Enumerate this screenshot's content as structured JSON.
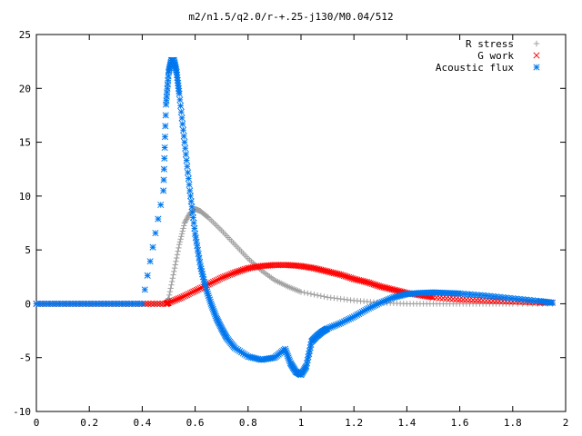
{
  "chart_data": {
    "type": "scatter",
    "title": "m2/n1.5/q2.0/r-+.25-j130/M0.04/512",
    "xlabel": "",
    "ylabel": "",
    "xlim": [
      0,
      2
    ],
    "ylim": [
      -10,
      25
    ],
    "x_ticks": [
      "0",
      "0.2",
      "0.4",
      "0.6",
      "0.8",
      "1",
      "1.2",
      "1.4",
      "1.6",
      "1.8",
      "2"
    ],
    "y_ticks": [
      "-10",
      "-5",
      "0",
      "5",
      "10",
      "15",
      "20",
      "25"
    ],
    "grid": false,
    "legend_position": "top-right",
    "series": [
      {
        "name": "R stress",
        "marker": "+",
        "color": "#a0a0a0",
        "x": [
          0.0,
          0.1,
          0.2,
          0.3,
          0.4,
          0.49,
          0.5,
          0.52,
          0.54,
          0.56,
          0.58,
          0.6,
          0.62,
          0.65,
          0.7,
          0.75,
          0.8,
          0.85,
          0.9,
          0.95,
          1.0,
          1.1,
          1.2,
          1.3,
          1.4,
          1.5,
          1.6,
          1.7,
          1.8,
          1.95
        ],
        "y": [
          0,
          0,
          0,
          0,
          0,
          0,
          0.5,
          3.0,
          5.5,
          7.5,
          8.4,
          8.8,
          8.6,
          8.0,
          6.8,
          5.5,
          4.2,
          3.1,
          2.2,
          1.6,
          1.1,
          0.6,
          0.3,
          0.1,
          0.0,
          0.0,
          0.0,
          0.0,
          0.0,
          0.0
        ]
      },
      {
        "name": "G work",
        "marker": "x",
        "color": "#ff0000",
        "x": [
          0.0,
          0.1,
          0.2,
          0.3,
          0.4,
          0.49,
          0.5,
          0.55,
          0.6,
          0.65,
          0.7,
          0.75,
          0.8,
          0.85,
          0.9,
          0.95,
          1.0,
          1.05,
          1.1,
          1.15,
          1.2,
          1.25,
          1.3,
          1.35,
          1.4,
          1.45,
          1.5,
          1.6,
          1.7,
          1.8,
          1.9,
          1.95
        ],
        "y": [
          0,
          0,
          0,
          0,
          0,
          0,
          0.1,
          0.6,
          1.2,
          1.8,
          2.4,
          2.9,
          3.3,
          3.5,
          3.6,
          3.6,
          3.5,
          3.3,
          3.0,
          2.7,
          2.3,
          2.0,
          1.6,
          1.3,
          1.0,
          0.8,
          0.6,
          0.4,
          0.3,
          0.2,
          0.1,
          0.1
        ]
      },
      {
        "name": "Acoustic flux",
        "marker": "*",
        "color": "#0077ee",
        "x": [
          0.0,
          0.1,
          0.2,
          0.3,
          0.4,
          0.48,
          0.49,
          0.5,
          0.51,
          0.52,
          0.53,
          0.54,
          0.56,
          0.58,
          0.6,
          0.62,
          0.64,
          0.66,
          0.68,
          0.7,
          0.72,
          0.75,
          0.8,
          0.85,
          0.9,
          0.94,
          0.96,
          0.98,
          1.0,
          1.02,
          1.04,
          1.06,
          1.08,
          1.1,
          1.15,
          1.2,
          1.25,
          1.3,
          1.35,
          1.4,
          1.45,
          1.5,
          1.55,
          1.6,
          1.7,
          1.8,
          1.9,
          1.95
        ],
        "y": [
          0,
          0,
          0,
          0,
          0,
          10.5,
          18.5,
          21.5,
          22.6,
          22.6,
          21.5,
          19.5,
          15.0,
          10.5,
          6.5,
          3.5,
          1.5,
          0.0,
          -1.3,
          -2.3,
          -3.2,
          -4.1,
          -4.9,
          -5.2,
          -5.0,
          -4.2,
          -5.5,
          -6.3,
          -6.6,
          -5.8,
          -3.5,
          -3.0,
          -2.6,
          -2.3,
          -1.8,
          -1.2,
          -0.5,
          0.1,
          0.6,
          0.9,
          1.0,
          1.05,
          1.0,
          0.95,
          0.75,
          0.5,
          0.25,
          0.1
        ]
      }
    ]
  }
}
